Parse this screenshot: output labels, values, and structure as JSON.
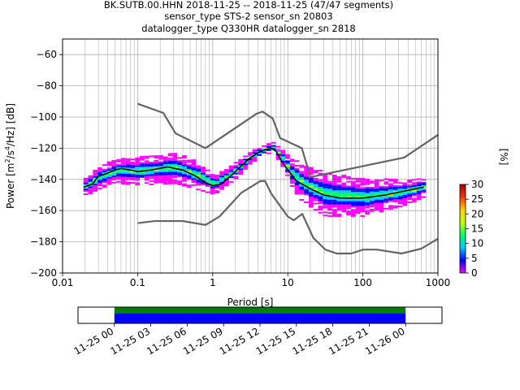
{
  "chart_data": [
    {
      "type": "heatmap",
      "title": {
        "line1": "BK.SUTB.00.HHN   2018-11-25 -- 2018-11-25  (47/47 segments)",
        "line2": "sensor_type STS-2 sensor_sn 20803",
        "line3": "datalogger_type Q330HR datalogger_sn 2818"
      },
      "xlabel": "Period [s]",
      "ylabel_parts": [
        "Power [m",
        "2",
        "/s",
        "4",
        "/Hz] [dB]"
      ],
      "xscale": "log",
      "xlim": [
        0.01,
        1000
      ],
      "ylim": [
        -200,
        -50
      ],
      "grid": true,
      "x_ticks": [
        {
          "v": 0.01,
          "label": "0.01"
        },
        {
          "v": 0.1,
          "label": "0.1"
        },
        {
          "v": 1,
          "label": "1"
        },
        {
          "v": 10,
          "label": "10"
        },
        {
          "v": 100,
          "label": "100"
        },
        {
          "v": 1000,
          "label": "1000"
        }
      ],
      "y_ticks": [
        {
          "v": -60,
          "label": "−60"
        },
        {
          "v": -80,
          "label": "−80"
        },
        {
          "v": -100,
          "label": "−100"
        },
        {
          "v": -120,
          "label": "−120"
        },
        {
          "v": -140,
          "label": "−140"
        },
        {
          "v": -160,
          "label": "−160"
        },
        {
          "v": -180,
          "label": "−180"
        },
        {
          "v": -200,
          "label": "−200"
        }
      ],
      "colorbar": {
        "label": "[%]",
        "range": [
          0,
          30
        ],
        "ticks": [
          {
            "v": 0,
            "label": "0"
          },
          {
            "v": 5,
            "label": "5"
          },
          {
            "v": 10,
            "label": "10"
          },
          {
            "v": 15,
            "label": "15"
          },
          {
            "v": 20,
            "label": "20"
          },
          {
            "v": 25,
            "label": "25"
          },
          {
            "v": 30,
            "label": "30"
          }
        ],
        "colors": [
          "#ff00ff",
          "#0000ff",
          "#00c8ff",
          "#00ff64",
          "#c8ff00",
          "#ffd200",
          "#ff3200",
          "#a00000"
        ]
      },
      "series": [
        {
          "role": "mean",
          "color": "#000000",
          "points": [
            [
              0.019,
              -145
            ],
            [
              0.025,
              -143
            ],
            [
              0.03,
              -138
            ],
            [
              0.04,
              -136
            ],
            [
              0.05,
              -134
            ],
            [
              0.06,
              -133
            ],
            [
              0.08,
              -134
            ],
            [
              0.1,
              -135
            ],
            [
              0.15,
              -134
            ],
            [
              0.25,
              -132
            ],
            [
              0.4,
              -134
            ],
            [
              0.6,
              -138
            ],
            [
              0.8,
              -142
            ],
            [
              1.0,
              -144
            ],
            [
              1.3,
              -143
            ],
            [
              2,
              -135
            ],
            [
              3,
              -127
            ],
            [
              4,
              -123
            ],
            [
              5,
              -121
            ],
            [
              6,
              -120
            ],
            [
              7,
              -122
            ],
            [
              8,
              -127
            ],
            [
              10,
              -134
            ],
            [
              13,
              -141
            ],
            [
              20,
              -146
            ],
            [
              30,
              -150
            ],
            [
              50,
              -152
            ],
            [
              100,
              -152
            ],
            [
              200,
              -150
            ],
            [
              400,
              -147
            ],
            [
              650,
              -145
            ]
          ]
        },
        {
          "role": "NHNM",
          "color": "#646464",
          "points": [
            [
              0.1,
              -91.5
            ],
            [
              0.22,
              -97.4
            ],
            [
              0.32,
              -110.5
            ],
            [
              0.8,
              -120
            ],
            [
              3.8,
              -98
            ],
            [
              4.6,
              -96.5
            ],
            [
              6.3,
              -101
            ],
            [
              7.9,
              -113.5
            ],
            [
              15.4,
              -120
            ],
            [
              20,
              -138.5
            ],
            [
              354.8,
              -126
            ],
            [
              1000,
              -111.5
            ]
          ]
        },
        {
          "role": "NLNM",
          "color": "#646464",
          "points": [
            [
              0.1,
              -168
            ],
            [
              0.17,
              -166.7
            ],
            [
              0.4,
              -166.7
            ],
            [
              0.8,
              -169.2
            ],
            [
              1.24,
              -163.7
            ],
            [
              2.4,
              -148.6
            ],
            [
              4.3,
              -141.1
            ],
            [
              5,
              -141.1
            ],
            [
              6,
              -149
            ],
            [
              10,
              -163.8
            ],
            [
              12,
              -166.2
            ],
            [
              15.6,
              -162.1
            ],
            [
              21.9,
              -177.5
            ],
            [
              31.6,
              -185
            ],
            [
              45,
              -187.5
            ],
            [
              70,
              -187.5
            ],
            [
              101,
              -185
            ],
            [
              154,
              -185
            ],
            [
              328,
              -187.5
            ],
            [
              600,
              -184.4
            ],
            [
              1000,
              -178
            ]
          ]
        }
      ],
      "histogram_bands": [
        {
          "x": [
            0.019,
            0.03,
            0.05,
            0.1,
            0.3,
            0.6,
            1,
            2,
            3,
            5,
            6,
            8,
            10,
            15,
            30,
            100,
            400,
            650
          ],
          "center": [
            -145,
            -139,
            -135,
            -135,
            -133,
            -138,
            -144,
            -134,
            -126,
            -121,
            -120,
            -127,
            -135,
            -143,
            -150,
            -152,
            -148,
            -145
          ],
          "halfwidth": [
            6,
            7,
            8,
            9,
            10,
            9,
            6,
            5,
            4,
            3,
            3,
            5,
            9,
            12,
            14,
            12,
            8,
            6
          ]
        }
      ]
    },
    {
      "type": "table",
      "title": "",
      "x_ticks": [
        "11-25 00",
        "11-25 03",
        "11-25 06",
        "11-25 09",
        "11-25 12",
        "11-25 15",
        "11-25 18",
        "11-25 21",
        "11-26 00"
      ],
      "xlim": [
        "2018-11-24 21:00",
        "2018-11-26 03:00"
      ],
      "data_coverage": [
        [
          "2018-11-25 00:00",
          "2018-11-26 00:00"
        ]
      ],
      "colors": {
        "psd_used": "#0000ff",
        "data": "#008000"
      }
    }
  ]
}
